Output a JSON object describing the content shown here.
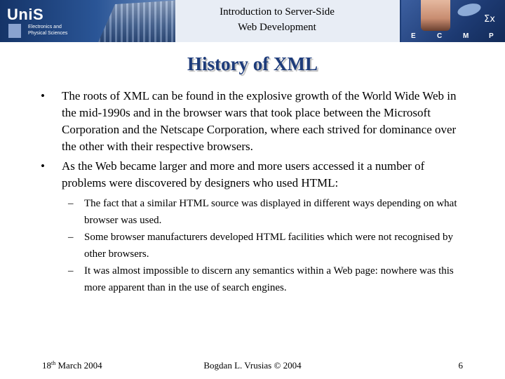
{
  "header": {
    "title_line1": "Introduction to Server-Side",
    "title_line2": "Web Development",
    "logo_text": "UniS",
    "logo_sub_line1": "Electronics and",
    "logo_sub_line2": "Physical Sciences",
    "badge_letters": [
      "E",
      "C",
      "M",
      "P"
    ],
    "sigma_glyph": "Σx"
  },
  "slide": {
    "title": "History of XML",
    "bullet_marker": "•",
    "sub_marker": "–",
    "bullets": [
      {
        "text": "The roots of XML can be found in the explosive growth of the World Wide Web in the mid-1990s and in the browser wars that took place between the Microsoft Corporation and the Netscape Corporation, where each strived for dominance over the other with their respective browsers."
      },
      {
        "text": "As the Web became larger and more and more users accessed it a number of problems were discovered by designers who used HTML:"
      }
    ],
    "sub_bullets": [
      "The fact that a similar HTML source was displayed in different ways depending on what browser was used.",
      "Some browser manufacturers developed HTML facilities which were not recognised by other browsers.",
      "It was almost impossible to discern any semantics within a Web page: nowhere was this more apparent than in the use of search engines."
    ]
  },
  "footer": {
    "date_day": "18",
    "date_suffix": "th",
    "date_rest": " March 2004",
    "author": "Bogdan L. Vrusias © 2004",
    "page_number": "6"
  },
  "colors": {
    "banner": "#1f3f78",
    "title": "#1d3b7a",
    "header_center": "#e8edf5"
  }
}
